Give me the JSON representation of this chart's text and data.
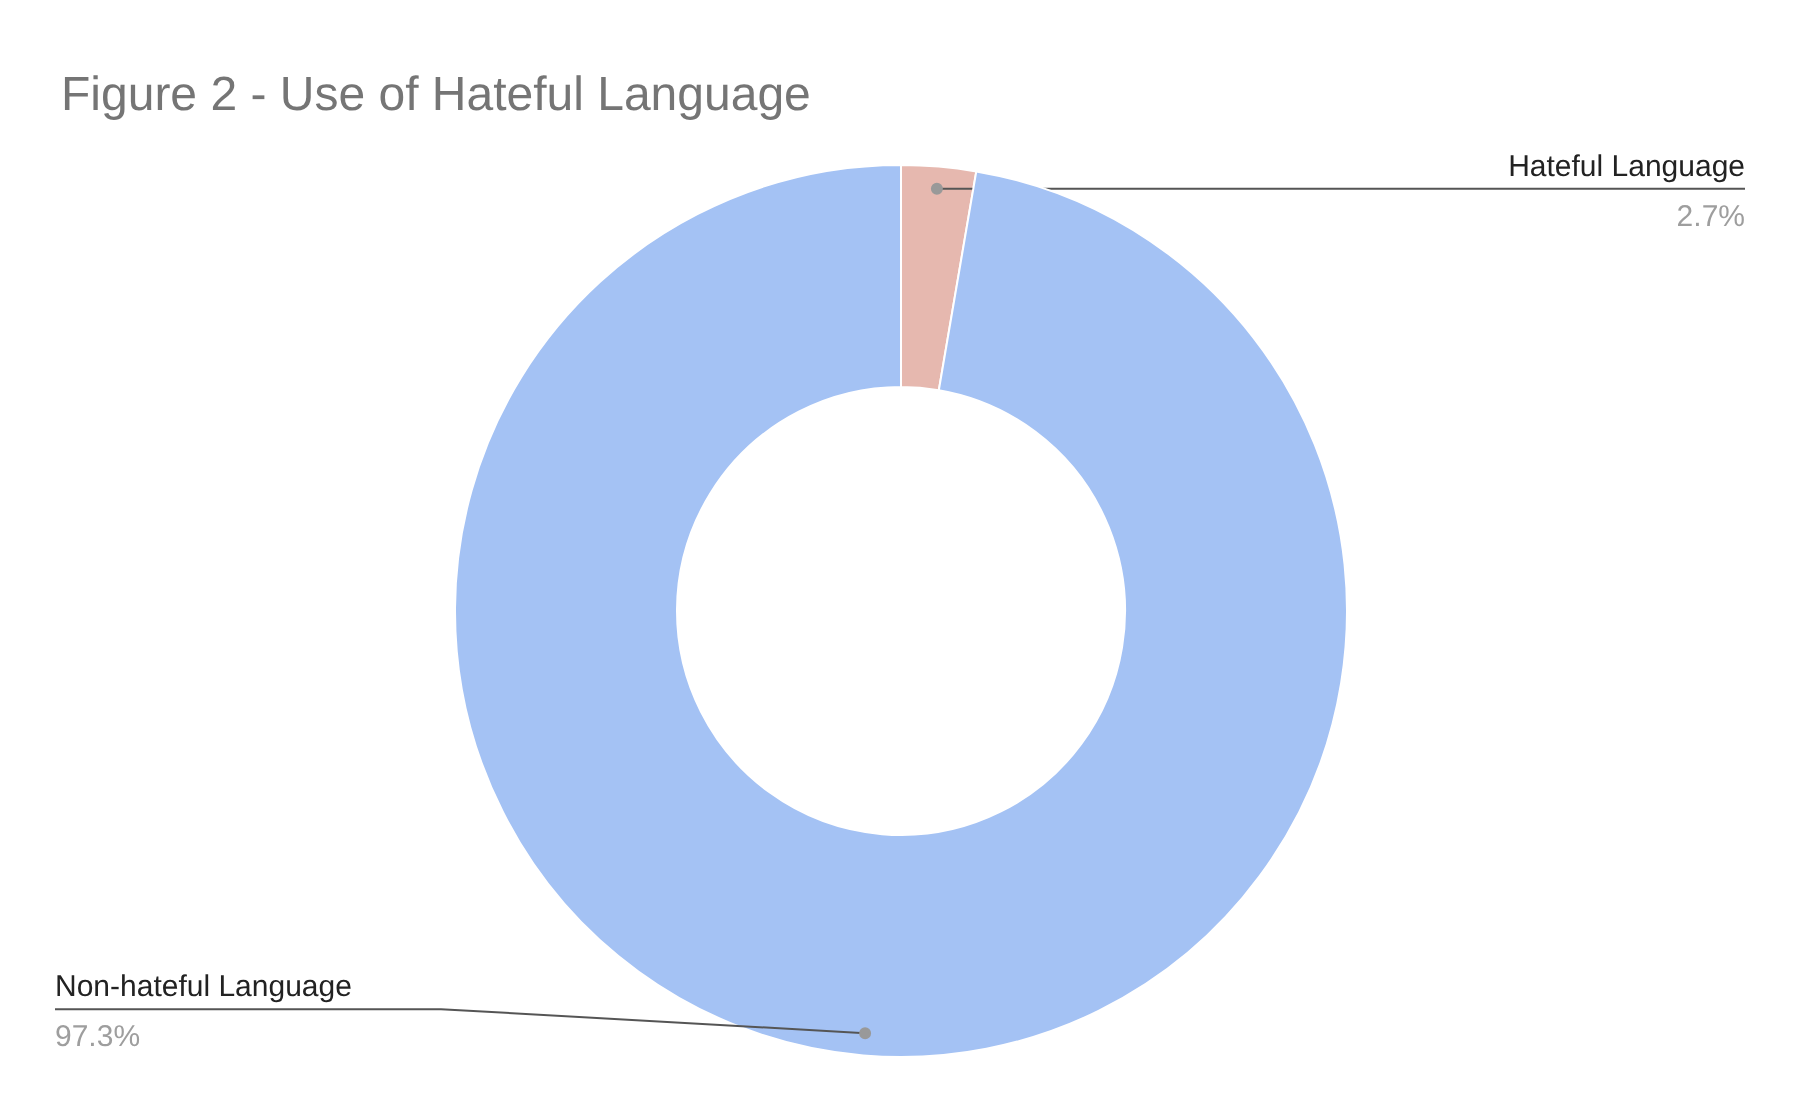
{
  "chart_data": {
    "type": "donut",
    "title": "Figure 2 - Use of Hateful Language",
    "categories": [
      "Hateful Language",
      "Non-hateful Language"
    ],
    "values": [
      2.7,
      97.3
    ],
    "colors": [
      "#e6b8af",
      "#a4c2f4"
    ],
    "value_labels": [
      "2.7%",
      "97.3%"
    ]
  }
}
